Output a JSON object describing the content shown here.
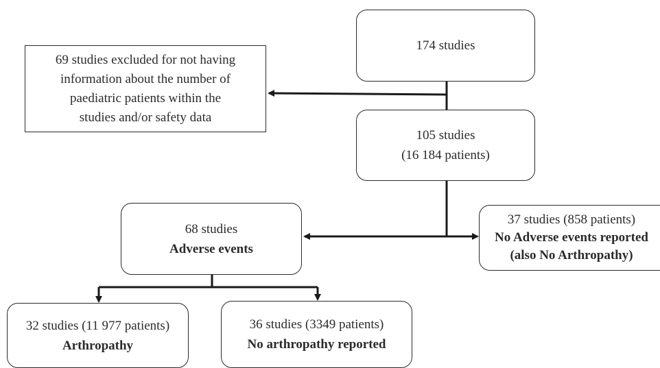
{
  "nodes": {
    "total": {
      "line1": "174 studies"
    },
    "excluded": {
      "line1": "69 studies excluded for not having",
      "line2": "information about the number of",
      "line3": "paediatric patients within the",
      "line4": "studies and/or safety data"
    },
    "included": {
      "line1": "105 studies",
      "line2": "(16 184 patients)"
    },
    "adverse": {
      "line1": "68 studies",
      "line2": "Adverse events"
    },
    "no_adverse": {
      "line1": "37 studies (858 patients)",
      "line2": "No Adverse events reported",
      "line3": "(also No Arthropathy)"
    },
    "arthropathy": {
      "line1": "32 studies (11 977 patients)",
      "line2": "Arthropathy"
    },
    "no_arthropathy": {
      "line1": "36 studies (3349 patients)",
      "line2": "No arthropathy reported"
    }
  },
  "colors": {
    "stroke": "#2a2a2a",
    "text": "#2b2b2b",
    "background": "#ffffff"
  }
}
